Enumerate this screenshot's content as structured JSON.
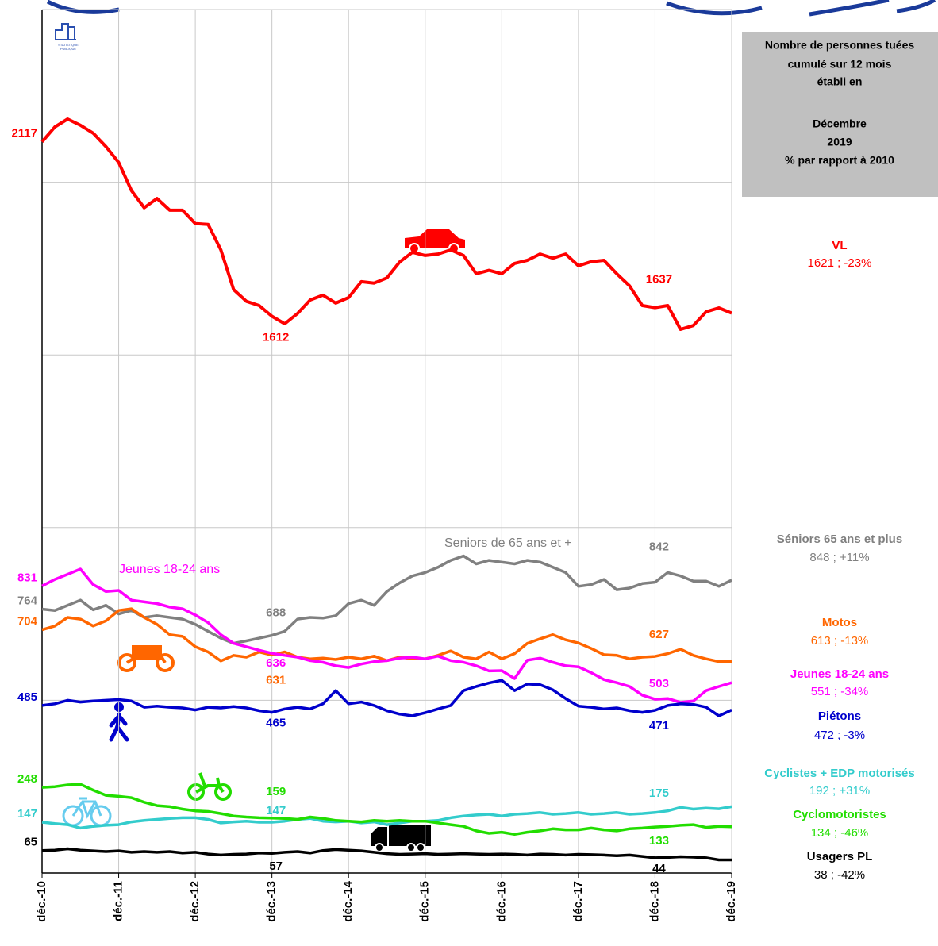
{
  "chart_data": {
    "type": "line",
    "logo": [
      "STATISTIQUE",
      "PUBLIQUE"
    ],
    "note": [
      "Nombre de personnes tuées",
      "cumulé sur 12 mois",
      "établi en",
      "Décembre",
      "2019",
      "% par rapport à 2010"
    ],
    "categories": [
      "déc.-10",
      null,
      null,
      null,
      null,
      null,
      "déc.-11",
      null,
      null,
      null,
      null,
      null,
      "déc.-12",
      null,
      null,
      null,
      null,
      null,
      "déc.-13",
      null,
      null,
      null,
      null,
      null,
      "déc.-14",
      null,
      null,
      null,
      null,
      null,
      "déc.-15",
      null,
      null,
      null,
      null,
      null,
      "déc.-16",
      null,
      null,
      null,
      null,
      null,
      "déc.-17",
      null,
      null,
      null,
      null,
      null,
      "déc.-18",
      null,
      null,
      null,
      null,
      null,
      "déc.-19"
    ],
    "ylim": [
      0,
      2500
    ],
    "yticks": [
      0,
      500,
      1000,
      1500,
      2000,
      2500
    ],
    "grid": true,
    "labeled_points": [
      0,
      18,
      48
    ],
    "annotations": [
      {
        "text": "Jeunes 18-24 ans",
        "color": "#ff00ff"
      },
      {
        "text": "Seniors de 65 ans et +",
        "color": "#808080"
      }
    ],
    "series": [
      {
        "name": "VL",
        "summary": "1621 ; -23%",
        "color": "#ff0000",
        "values": [
          2117,
          2160,
          2183,
          2165,
          2142,
          2103,
          2057,
          1976,
          1926,
          1953,
          1919,
          1919,
          1880,
          1878,
          1804,
          1689,
          1655,
          1643,
          1612,
          1590,
          1620,
          1659,
          1673,
          1650,
          1666,
          1712,
          1708,
          1723,
          1769,
          1797,
          1788,
          1792,
          1804,
          1788,
          1735,
          1745,
          1735,
          1765,
          1774,
          1792,
          1780,
          1792,
          1758,
          1770,
          1774,
          1735,
          1700,
          1643,
          1637,
          1643,
          1574,
          1585,
          1625,
          1636,
          1621
        ]
      },
      {
        "name": "Séniors 65 ans et plus",
        "summary": "848 ; +11%",
        "color": "#808080",
        "values": [
          764,
          760,
          775,
          790,
          762,
          775,
          750,
          760,
          740,
          745,
          740,
          735,
          720,
          700,
          680,
          665,
          672,
          680,
          688,
          700,
          735,
          740,
          738,
          745,
          780,
          790,
          775,
          815,
          840,
          860,
          870,
          885,
          905,
          918,
          895,
          905,
          900,
          895,
          905,
          900,
          885,
          870,
          830,
          835,
          850,
          820,
          825,
          838,
          842,
          870,
          860,
          845,
          845,
          830,
          848
        ]
      },
      {
        "name": "Motos",
        "summary": "613 ; -13%",
        "color": "#ff6600",
        "values": [
          704,
          715,
          740,
          735,
          715,
          730,
          760,
          765,
          740,
          720,
          690,
          685,
          655,
          640,
          614,
          630,
          625,
          640,
          631,
          640,
          625,
          620,
          622,
          618,
          625,
          620,
          628,
          615,
          625,
          620,
          620,
          630,
          643,
          625,
          620,
          640,
          620,
          635,
          665,
          678,
          690,
          675,
          666,
          650,
          632,
          630,
          620,
          625,
          627,
          635,
          648,
          630,
          620,
          612,
          613
        ]
      },
      {
        "name": "Jeunes 18-24 ans",
        "summary": "551 ; -34%",
        "color": "#ff00ff",
        "values": [
          831,
          850,
          865,
          880,
          835,
          815,
          818,
          790,
          785,
          780,
          770,
          765,
          747,
          725,
          690,
          665,
          655,
          645,
          636,
          630,
          625,
          615,
          610,
          600,
          595,
          605,
          612,
          615,
          622,
          625,
          620,
          628,
          615,
          610,
          600,
          585,
          586,
          563,
          616,
          622,
          610,
          600,
          597,
          580,
          560,
          551,
          540,
          515,
          503,
          505,
          494,
          498,
          528,
          540,
          551
        ]
      },
      {
        "name": "Piétons",
        "summary": "472 ; -3%",
        "color": "#0000cc",
        "values": [
          485,
          490,
          500,
          495,
          498,
          500,
          502,
          498,
          480,
          483,
          480,
          478,
          472,
          480,
          478,
          482,
          478,
          470,
          465,
          475,
          480,
          475,
          490,
          528,
          490,
          495,
          485,
          470,
          460,
          455,
          464,
          475,
          485,
          528,
          540,
          550,
          558,
          528,
          547,
          545,
          530,
          505,
          483,
          480,
          475,
          478,
          470,
          465,
          471,
          485,
          490,
          488,
          480,
          455,
          472
        ]
      },
      {
        "name": "Cyclistes + EDP motorisés",
        "summary": "192 ; +31%",
        "color": "#33cccc",
        "values": [
          147,
          143,
          140,
          130,
          135,
          138,
          140,
          148,
          152,
          155,
          158,
          160,
          160,
          155,
          145,
          148,
          150,
          147,
          147,
          150,
          155,
          158,
          150,
          148,
          150,
          145,
          148,
          140,
          145,
          150,
          150,
          152,
          160,
          165,
          168,
          170,
          165,
          170,
          172,
          175,
          170,
          172,
          175,
          170,
          172,
          175,
          170,
          172,
          175,
          180,
          190,
          185,
          188,
          186,
          192
        ]
      },
      {
        "name": "Cyclomotoristes",
        "summary": "134 ; -46%",
        "color": "#22dd00",
        "values": [
          248,
          250,
          255,
          257,
          240,
          225,
          222,
          218,
          205,
          195,
          192,
          185,
          180,
          178,
          172,
          165,
          162,
          160,
          159,
          158,
          155,
          162,
          158,
          152,
          150,
          148,
          152,
          150,
          152,
          150,
          150,
          145,
          140,
          135,
          122,
          115,
          118,
          112,
          118,
          122,
          128,
          125,
          125,
          130,
          125,
          122,
          128,
          130,
          133,
          135,
          138,
          140,
          132,
          135,
          134
        ]
      },
      {
        "name": "Usagers PL",
        "summary": "38 ; -42%",
        "color": "#000000",
        "values": [
          65,
          66,
          70,
          66,
          64,
          62,
          64,
          60,
          62,
          60,
          62,
          58,
          60,
          55,
          52,
          54,
          55,
          58,
          57,
          60,
          62,
          58,
          65,
          68,
          66,
          64,
          60,
          56,
          54,
          55,
          56,
          54,
          55,
          56,
          55,
          54,
          55,
          54,
          52,
          55,
          54,
          52,
          54,
          53,
          52,
          50,
          52,
          48,
          44,
          45,
          47,
          46,
          44,
          38,
          38
        ]
      }
    ]
  }
}
